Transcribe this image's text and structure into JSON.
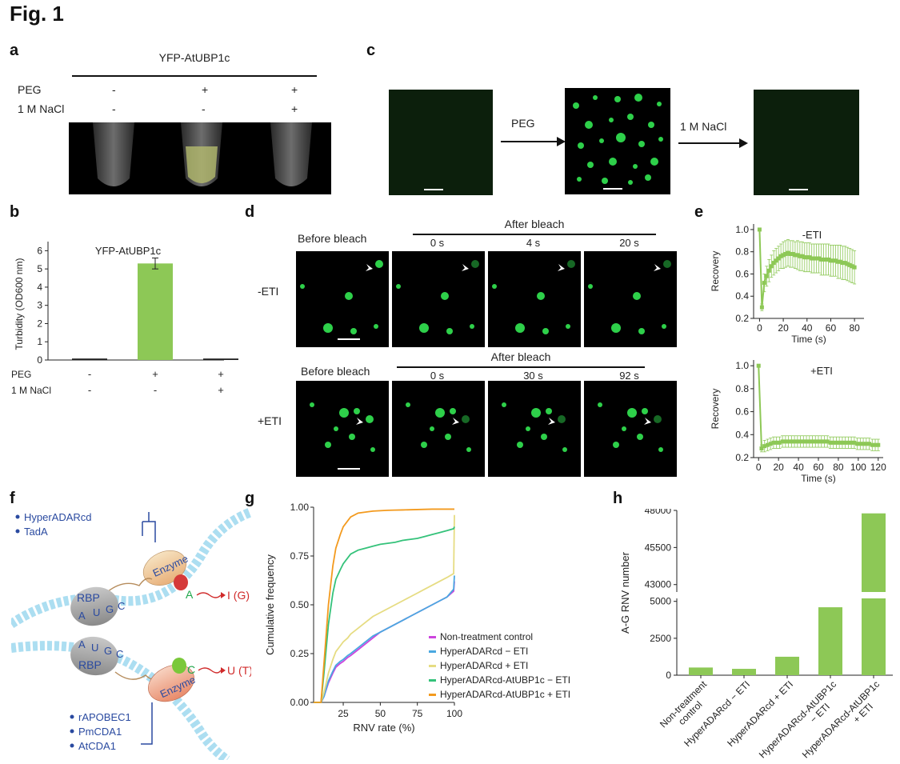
{
  "figure_title": "Fig. 1",
  "panels": {
    "a": {
      "label": "a",
      "header": "YFP-AtUBP1c",
      "row_labels": [
        "PEG",
        "1 M NaCl"
      ],
      "peg_signs": [
        "-",
        "+",
        "+"
      ],
      "nacl_signs": [
        "-",
        "-",
        "+"
      ]
    },
    "b": {
      "label": "b",
      "chart_title": "YFP-AtUBP1c",
      "y_label": "Turbidity (OD600 nm)",
      "y_ticks": [
        "0",
        "1",
        "2",
        "3",
        "4",
        "5",
        "6"
      ],
      "row_labels": [
        "PEG",
        "1 M NaCl"
      ],
      "peg_signs": [
        "-",
        "+",
        "+"
      ],
      "nacl_signs": [
        "-",
        "-",
        "+"
      ]
    },
    "c": {
      "label": "c",
      "arrow1_label": "PEG",
      "arrow2_label": "1 M NaCl"
    },
    "d": {
      "label": "d",
      "before_label": "Before bleach",
      "after_label": "After bleach",
      "row1_label": "-ETI",
      "row1_times": [
        "0 s",
        "4 s",
        "20 s"
      ],
      "row2_label": "+ETI",
      "row2_times": [
        "0 s",
        "30 s",
        "92 s"
      ]
    },
    "e": {
      "label": "e",
      "top_title": "-ETI",
      "bottom_title": "+ETI",
      "y_label": "Recovery",
      "x_label": "Time (s)",
      "top_y_ticks": [
        "0.2",
        "0.4",
        "0.6",
        "0.8",
        "1.0"
      ],
      "top_x_ticks": [
        "0",
        "20",
        "40",
        "60",
        "80"
      ],
      "bottom_y_ticks": [
        "0.2",
        "0.4",
        "0.6",
        "0.8",
        "1.0"
      ],
      "bottom_x_ticks": [
        "0",
        "20",
        "40",
        "60",
        "80",
        "100",
        "120"
      ]
    },
    "f": {
      "label": "f",
      "top_enzymes": [
        "HyperADARcd",
        "TadA"
      ],
      "bottom_enzymes": [
        "rAPOBEC1",
        "PmCDA1",
        "AtCDA1"
      ],
      "rbp_label": "RBP",
      "enzyme_label": "Enzyme",
      "bases_top": [
        "A",
        "U",
        "G",
        "C"
      ],
      "bases_bottom": [
        "A",
        "U",
        "G",
        "C"
      ],
      "edit_top_from": "A",
      "edit_top_to": "I (G)",
      "edit_bottom_from": "C",
      "edit_bottom_to": "U (T)"
    },
    "g": {
      "label": "g",
      "x_label": "RNV rate (%)",
      "y_label": "Cumulative frequency",
      "x_ticks": [
        "25",
        "50",
        "75",
        "100"
      ],
      "y_ticks": [
        "0.00",
        "0.25",
        "0.50",
        "0.75",
        "1.00"
      ],
      "legend": [
        "Non-treatment control",
        "HyperADARcd − ETI",
        "HyperADARcd + ETI",
        "HyperADARcd-AtUBP1c − ETI",
        "HyperADARcd-AtUBP1c + ETI"
      ]
    },
    "h": {
      "label": "h",
      "y_label": "A-G RNV number",
      "y_ticks_low": [
        "0",
        "2500",
        "5000"
      ],
      "y_ticks_high": [
        "43000",
        "45500",
        "48000"
      ],
      "categories": [
        "Non-treatment control",
        "HyperADARcd − ETI",
        "HyperADARcd + ETI",
        "HyperADARcd-AtUBP1c − ETI",
        "HyperADARcd-AtUBP1c + ETI"
      ]
    }
  },
  "colors": {
    "bar_green": "#8dc856",
    "fluor_green": "#2ed04a",
    "pink": "#cc44dd",
    "blue": "#4aa8e0",
    "yellow": "#e6dc82",
    "teal_green": "#34c27a",
    "orange": "#f39a1e",
    "enzyme_blue": "#2a4aa0",
    "edit_red": "#d02a2a"
  },
  "chart_data": [
    {
      "type": "bar",
      "panel": "b",
      "title": "YFP-AtUBP1c",
      "categories": [
        "PEG - / 1 M NaCl -",
        "PEG + / 1 M NaCl -",
        "PEG + / 1 M NaCl +"
      ],
      "values": [
        0.08,
        5.3,
        0.08
      ],
      "errors": [
        0.02,
        0.3,
        0.02
      ],
      "ylabel": "Turbidity (OD600 nm)",
      "ylim": [
        0,
        6.5
      ]
    },
    {
      "type": "line",
      "panel": "e-top",
      "title": "-ETI",
      "xlabel": "Time (s)",
      "ylabel": "Recovery",
      "xlim": [
        -5,
        88
      ],
      "ylim": [
        0.2,
        1.05
      ],
      "x": [
        0,
        2,
        4,
        6,
        8,
        10,
        12,
        14,
        16,
        18,
        20,
        22,
        24,
        26,
        28,
        30,
        32,
        34,
        36,
        38,
        40,
        42,
        44,
        46,
        48,
        50,
        52,
        54,
        56,
        58,
        60,
        62,
        64,
        66,
        68,
        70,
        72,
        74,
        76,
        78,
        80
      ],
      "values": [
        1.0,
        0.3,
        0.52,
        0.58,
        0.63,
        0.67,
        0.7,
        0.72,
        0.74,
        0.76,
        0.77,
        0.78,
        0.79,
        0.78,
        0.78,
        0.77,
        0.77,
        0.76,
        0.76,
        0.75,
        0.75,
        0.75,
        0.74,
        0.74,
        0.74,
        0.74,
        0.73,
        0.73,
        0.73,
        0.73,
        0.72,
        0.72,
        0.72,
        0.71,
        0.71,
        0.7,
        0.7,
        0.69,
        0.68,
        0.67,
        0.66
      ],
      "errors": [
        0.0,
        0.03,
        0.08,
        0.09,
        0.1,
        0.1,
        0.11,
        0.11,
        0.11,
        0.11,
        0.12,
        0.12,
        0.12,
        0.12,
        0.12,
        0.12,
        0.13,
        0.13,
        0.13,
        0.13,
        0.13,
        0.13,
        0.13,
        0.13,
        0.13,
        0.13,
        0.14,
        0.14,
        0.14,
        0.14,
        0.14,
        0.14,
        0.14,
        0.15,
        0.15,
        0.15,
        0.15,
        0.15,
        0.15,
        0.15,
        0.15
      ]
    },
    {
      "type": "line",
      "panel": "e-bottom",
      "title": "+ETI",
      "xlabel": "Time (s)",
      "ylabel": "Recovery",
      "xlim": [
        -5,
        125
      ],
      "ylim": [
        0.2,
        1.05
      ],
      "x": [
        0,
        3,
        6,
        9,
        12,
        15,
        18,
        21,
        24,
        27,
        30,
        33,
        36,
        39,
        42,
        45,
        48,
        51,
        54,
        57,
        60,
        63,
        66,
        69,
        72,
        75,
        78,
        81,
        84,
        87,
        90,
        93,
        96,
        99,
        102,
        105,
        108,
        111,
        114,
        117,
        120
      ],
      "values": [
        1.0,
        0.28,
        0.3,
        0.31,
        0.32,
        0.33,
        0.33,
        0.33,
        0.34,
        0.34,
        0.34,
        0.34,
        0.34,
        0.34,
        0.34,
        0.34,
        0.34,
        0.34,
        0.34,
        0.34,
        0.34,
        0.34,
        0.34,
        0.34,
        0.33,
        0.33,
        0.33,
        0.33,
        0.33,
        0.33,
        0.33,
        0.33,
        0.33,
        0.32,
        0.32,
        0.32,
        0.32,
        0.32,
        0.31,
        0.31,
        0.31
      ],
      "errors": [
        0.0,
        0.03,
        0.05,
        0.05,
        0.05,
        0.05,
        0.05,
        0.05,
        0.05,
        0.05,
        0.05,
        0.05,
        0.05,
        0.05,
        0.05,
        0.05,
        0.05,
        0.05,
        0.05,
        0.05,
        0.05,
        0.05,
        0.05,
        0.05,
        0.05,
        0.05,
        0.05,
        0.05,
        0.05,
        0.05,
        0.05,
        0.05,
        0.05,
        0.05,
        0.05,
        0.05,
        0.05,
        0.05,
        0.05,
        0.05,
        0.05
      ]
    },
    {
      "type": "line",
      "panel": "g",
      "xlabel": "RNV rate (%)",
      "ylabel": "Cumulative frequency",
      "xlim": [
        5,
        100
      ],
      "ylim": [
        0,
        1.0
      ],
      "x": [
        5,
        10,
        12,
        15,
        18,
        20,
        23,
        25,
        28,
        30,
        35,
        40,
        45,
        50,
        55,
        60,
        65,
        70,
        75,
        80,
        85,
        90,
        95,
        99.5,
        100
      ],
      "series": [
        {
          "name": "Non-treatment control",
          "color": "#cc44dd",
          "values": [
            0.0,
            0.0,
            0.03,
            0.1,
            0.15,
            0.18,
            0.2,
            0.21,
            0.23,
            0.24,
            0.27,
            0.3,
            0.33,
            0.36,
            0.38,
            0.4,
            0.42,
            0.44,
            0.46,
            0.48,
            0.5,
            0.52,
            0.54,
            0.57,
            0.62
          ]
        },
        {
          "name": "HyperADARcd − ETI",
          "color": "#4aa8e0",
          "values": [
            0.0,
            0.0,
            0.03,
            0.11,
            0.16,
            0.19,
            0.21,
            0.22,
            0.24,
            0.25,
            0.28,
            0.31,
            0.34,
            0.36,
            0.38,
            0.4,
            0.42,
            0.44,
            0.46,
            0.48,
            0.5,
            0.52,
            0.54,
            0.58,
            0.65
          ]
        },
        {
          "name": "HyperADARcd + ETI",
          "color": "#e6dc82",
          "values": [
            0.0,
            0.0,
            0.05,
            0.15,
            0.22,
            0.26,
            0.29,
            0.31,
            0.33,
            0.35,
            0.38,
            0.41,
            0.44,
            0.46,
            0.48,
            0.5,
            0.52,
            0.54,
            0.56,
            0.58,
            0.6,
            0.62,
            0.64,
            0.66,
            0.96
          ]
        },
        {
          "name": "HyperADARcd-AtUBP1c − ETI",
          "color": "#34c27a",
          "values": [
            0.0,
            0.0,
            0.15,
            0.4,
            0.56,
            0.63,
            0.68,
            0.71,
            0.74,
            0.76,
            0.78,
            0.79,
            0.8,
            0.81,
            0.815,
            0.82,
            0.83,
            0.835,
            0.84,
            0.85,
            0.86,
            0.87,
            0.88,
            0.89,
            0.9
          ]
        },
        {
          "name": "HyperADARcd-AtUBP1c + ETI",
          "color": "#f39a1e",
          "values": [
            0.0,
            0.0,
            0.2,
            0.5,
            0.7,
            0.79,
            0.86,
            0.9,
            0.93,
            0.95,
            0.97,
            0.975,
            0.98,
            0.982,
            0.984,
            0.985,
            0.986,
            0.987,
            0.988,
            0.989,
            0.99,
            0.99,
            0.99,
            0.99,
            0.99
          ]
        }
      ]
    },
    {
      "type": "bar",
      "panel": "h",
      "ylabel": "A-G RNV number",
      "axis_break": [
        5200,
        42500
      ],
      "ylim_low": [
        0,
        5200
      ],
      "ylim_high": [
        42500,
        48000
      ],
      "categories": [
        "Non-treatment control",
        "HyperADARcd − ETI",
        "HyperADARcd + ETI",
        "HyperADARcd-AtUBP1c − ETI",
        "HyperADARcd-AtUBP1c + ETI"
      ],
      "values": [
        520,
        430,
        1250,
        4600,
        47800
      ]
    }
  ]
}
